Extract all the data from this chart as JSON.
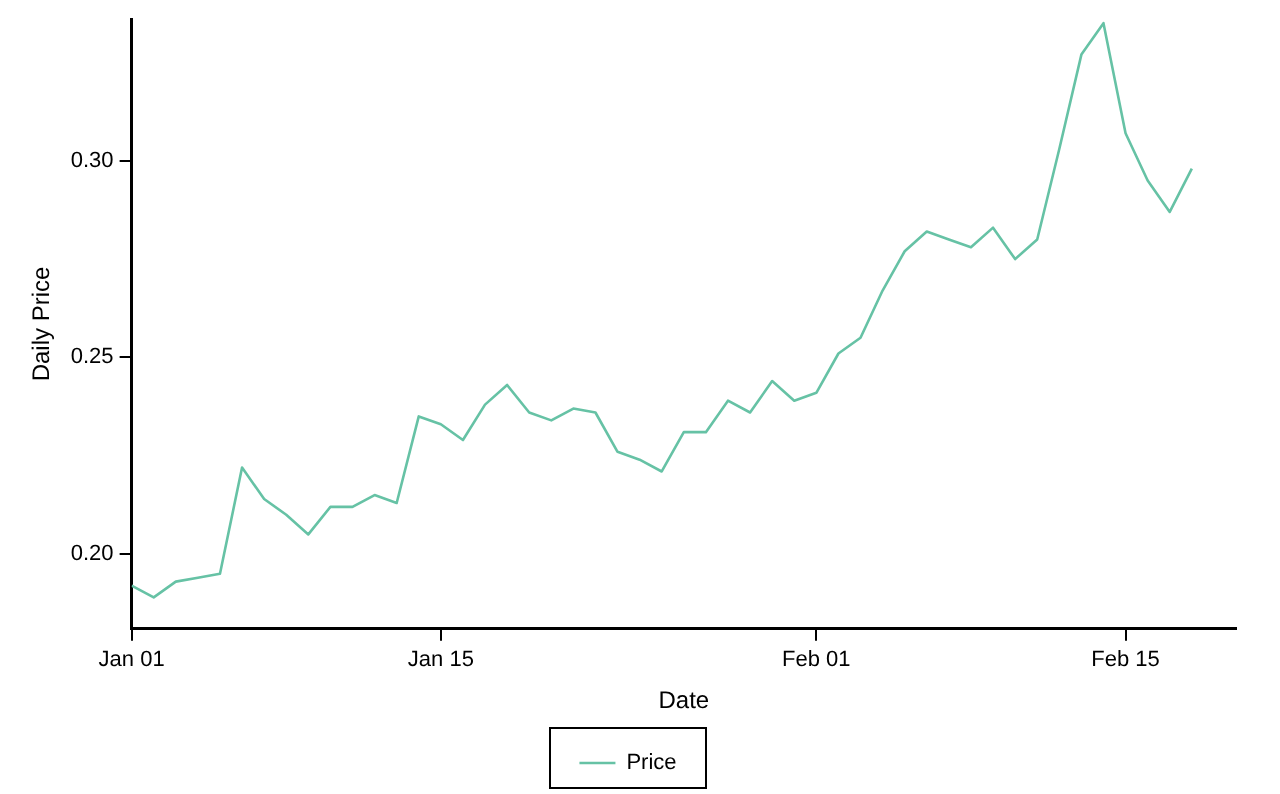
{
  "chart_data": {
    "type": "line",
    "xlabel": "Date",
    "ylabel": "Daily Price",
    "x": [
      "--01-01",
      "--01-02",
      "--01-03",
      "--01-04",
      "--01-05",
      "--01-06",
      "--01-07",
      "--01-08",
      "--01-09",
      "--01-10",
      "--01-11",
      "--01-12",
      "--01-13",
      "--01-14",
      "--01-15",
      "--01-16",
      "--01-17",
      "--01-18",
      "--01-19",
      "--01-20",
      "--01-21",
      "--01-22",
      "--01-23",
      "--01-24",
      "--01-25",
      "--01-26",
      "--01-27",
      "--01-28",
      "--01-29",
      "--01-30",
      "--01-31",
      "--02-01",
      "--02-02",
      "--02-03",
      "--02-04",
      "--02-05",
      "--02-06",
      "--02-07",
      "--02-08",
      "--02-09",
      "--02-10",
      "--02-11",
      "--02-12",
      "--02-13",
      "--02-14",
      "--02-15",
      "--02-16",
      "--02-17",
      "--02-18"
    ],
    "series": [
      {
        "name": "Price",
        "color": "#66c2a5",
        "values": [
          0.192,
          0.189,
          0.193,
          0.194,
          0.195,
          0.222,
          0.214,
          0.21,
          0.205,
          0.212,
          0.212,
          0.215,
          0.213,
          0.235,
          0.233,
          0.229,
          0.238,
          0.243,
          0.236,
          0.234,
          0.237,
          0.236,
          0.226,
          0.224,
          0.221,
          0.231,
          0.231,
          0.239,
          0.236,
          0.244,
          0.239,
          0.241,
          0.251,
          0.255,
          0.267,
          0.277,
          0.282,
          0.28,
          0.278,
          0.283,
          0.275,
          0.28,
          0.303,
          0.327,
          0.335,
          0.307,
          0.295,
          0.287,
          0.298
        ]
      }
    ],
    "xlim": [
      "--01-01",
      "--02-20"
    ],
    "xticks": [
      {
        "value": "--01-01",
        "label": "Jan 01"
      },
      {
        "value": "--01-15",
        "label": "Jan 15"
      },
      {
        "value": "--02-01",
        "label": "Feb 01"
      },
      {
        "value": "--02-15",
        "label": "Feb 15"
      }
    ],
    "ylim": [
      0.181,
      0.336
    ],
    "yticks": [
      {
        "value": 0.2,
        "label": "0.20"
      },
      {
        "value": 0.25,
        "label": "0.25"
      },
      {
        "value": 0.3,
        "label": "0.30"
      }
    ],
    "legend": "bottom",
    "grid": false,
    "marker": "none",
    "line_style": "solid"
  }
}
